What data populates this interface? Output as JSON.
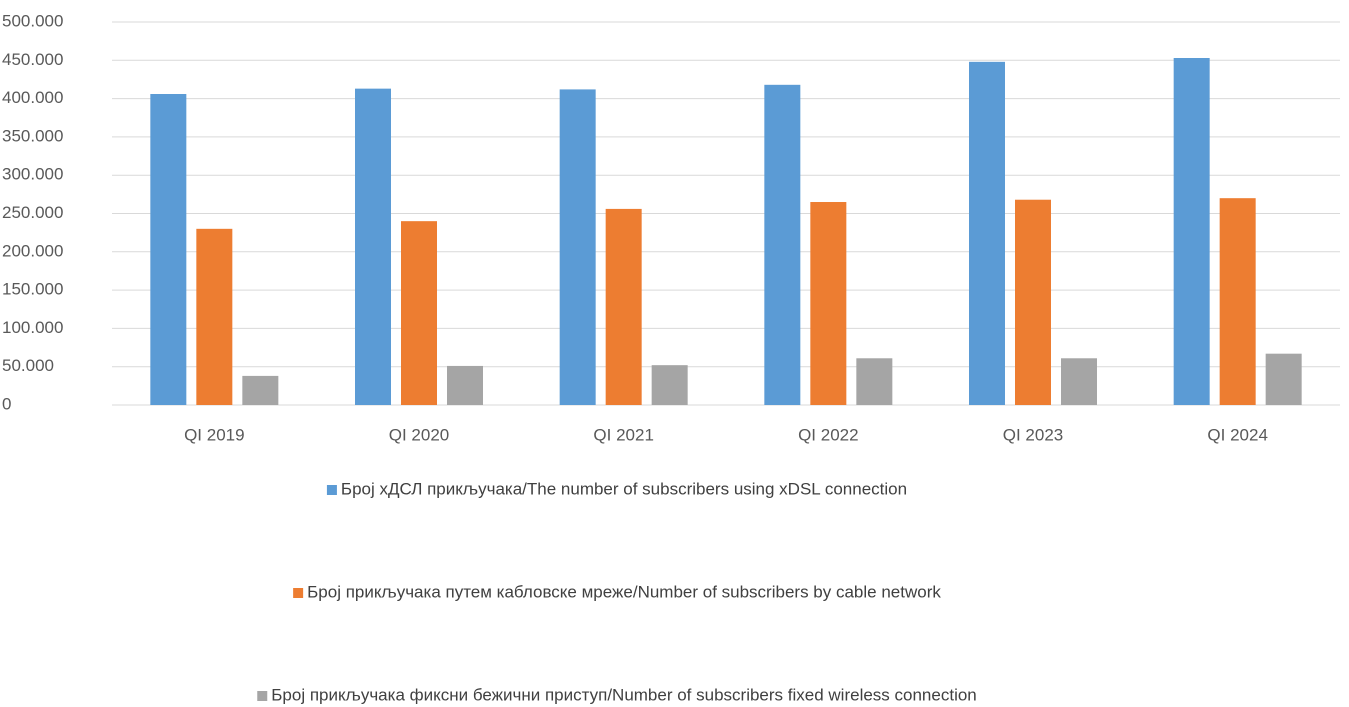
{
  "chart_data": {
    "type": "bar",
    "categories": [
      "QI 2019",
      "QI 2020",
      "QI 2021",
      "QI 2022",
      "QI 2023",
      "QI 2024"
    ],
    "series": [
      {
        "name": "Број  хДСЛ прикључака/The number of subscribers using  xDSL connection",
        "color": "#5b9bd5",
        "values": [
          406000,
          413000,
          412000,
          418000,
          448000,
          453000
        ]
      },
      {
        "name": "Број прикључака путем  кабловске мреже/Number of subscribers by cable network",
        "color": "#ed7d31",
        "values": [
          230000,
          240000,
          256000,
          265000,
          268000,
          270000
        ]
      },
      {
        "name": "Број прикључака фиксни бежични приступ/Number of subscribers fixed wireless connection",
        "color": "#a5a5a5",
        "values": [
          38000,
          51000,
          52000,
          61000,
          61000,
          67000
        ]
      }
    ],
    "ylim": [
      0,
      500000
    ],
    "yticks": [
      0,
      {
        "value": 50000,
        "label": "50.000"
      },
      {
        "value": 100000,
        "label": "100.000"
      },
      {
        "value": 150000,
        "label": "150.000"
      },
      {
        "value": 200000,
        "label": "200.000"
      },
      {
        "value": 250000,
        "label": "250.000"
      },
      {
        "value": 300000,
        "label": "300.000"
      },
      {
        "value": 350000,
        "label": "350.000"
      },
      {
        "value": 400000,
        "label": "400.000"
      },
      {
        "value": 450000,
        "label": "450.000"
      },
      {
        "value": 500000,
        "label": "500.000"
      }
    ],
    "grid": true,
    "legend": "bottom"
  }
}
